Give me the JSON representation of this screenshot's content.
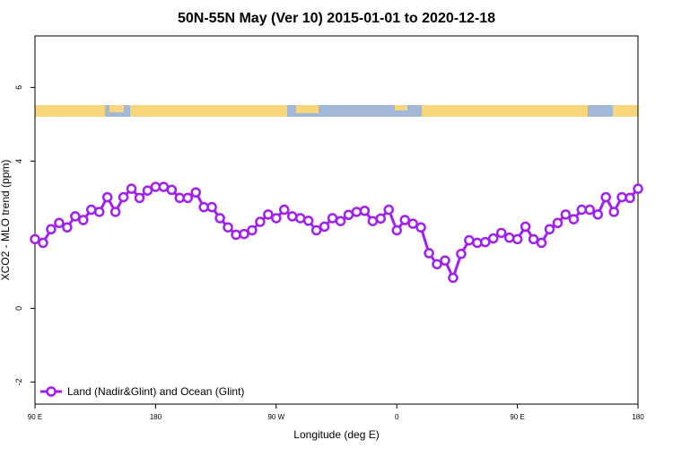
{
  "chart_data": {
    "type": "line",
    "title": "50N-55N May (Ver 10)   2015-01-01 to 2020-12-18",
    "xlabel": "Longitude (deg E)",
    "ylabel": "XCO2 - MLO trend (ppm)",
    "x": [
      90,
      96,
      102,
      108,
      114,
      120,
      126,
      132,
      138,
      144,
      150,
      156,
      162,
      168,
      174,
      180,
      186,
      192,
      198,
      204,
      210,
      216,
      222,
      228,
      234,
      240,
      246,
      252,
      258,
      264,
      270,
      276,
      282,
      288,
      294,
      300,
      306,
      312,
      318,
      324,
      330,
      336,
      342,
      348,
      354,
      360,
      366,
      372,
      378,
      384,
      390,
      396,
      402,
      408,
      414,
      420,
      426,
      432,
      438,
      444,
      450,
      456,
      462,
      468,
      474,
      480,
      486,
      492,
      498,
      504,
      510,
      516,
      522,
      528,
      534,
      540
    ],
    "series": [
      {
        "name": "Land (Nadir&Glint) and Ocean (Glint)",
        "color": "#a020f0",
        "values": [
          1.88,
          1.78,
          2.15,
          2.32,
          2.2,
          2.5,
          2.4,
          2.68,
          2.62,
          3.02,
          2.62,
          3.02,
          3.25,
          3.0,
          3.2,
          3.3,
          3.3,
          3.22,
          3.0,
          3.0,
          3.15,
          2.75,
          2.75,
          2.45,
          2.2,
          2.0,
          2.02,
          2.12,
          2.35,
          2.55,
          2.45,
          2.68,
          2.5,
          2.45,
          2.38,
          2.12,
          2.22,
          2.45,
          2.37,
          2.54,
          2.62,
          2.65,
          2.37,
          2.44,
          2.68,
          2.12,
          2.4,
          2.3,
          2.2,
          1.5,
          1.2,
          1.3,
          0.83,
          1.48,
          1.85,
          1.78,
          1.8,
          1.9,
          2.05,
          1.92,
          1.88,
          2.22,
          1.88,
          1.78,
          2.15,
          2.32,
          2.55,
          2.42,
          2.68,
          2.68,
          2.55,
          3.02,
          2.62,
          3.02,
          3.0,
          3.25
        ]
      }
    ],
    "xlim": [
      90,
      540
    ],
    "xticks": [
      {
        "value": 90,
        "label": "90 E"
      },
      180,
      {
        "value": 270,
        "label": "90 W"
      },
      {
        "value": 360,
        "label": "0"
      },
      {
        "value": 450,
        "label": "90 E"
      },
      {
        "value": 540,
        "label": "180"
      }
    ],
    "ylim": [
      -2.6,
      7.4
    ],
    "yticks": [
      -2,
      0,
      4,
      6
    ],
    "legend": "bottom-left"
  }
}
